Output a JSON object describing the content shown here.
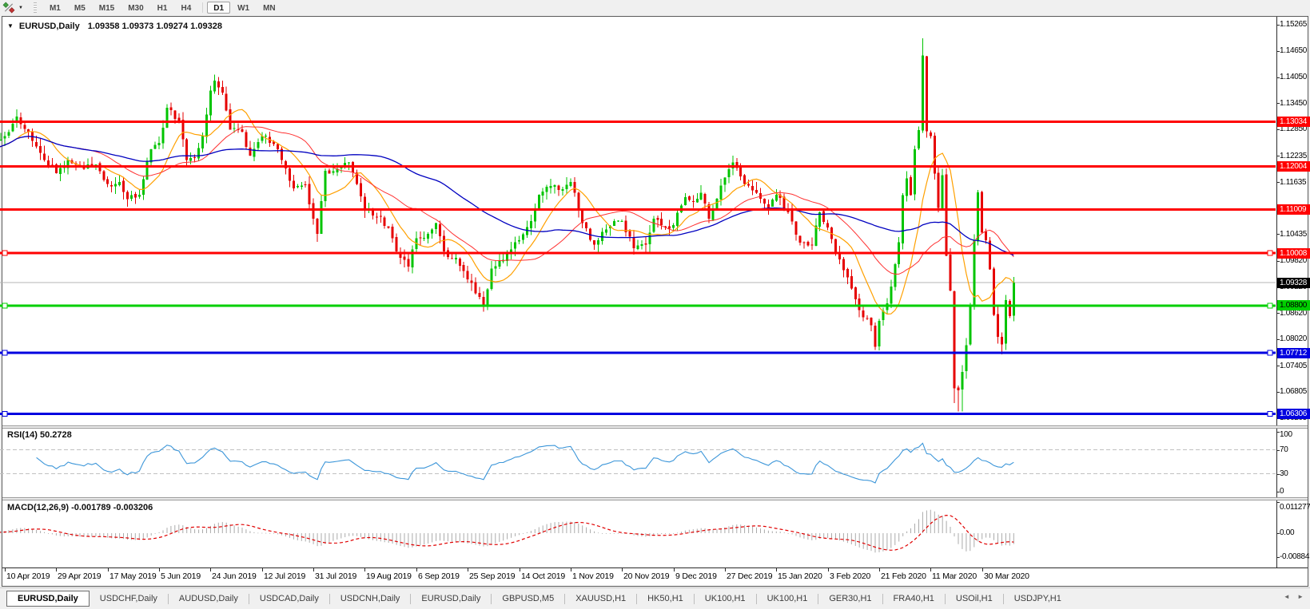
{
  "icons": {
    "collapse": "▼",
    "caret": "▼",
    "tab_prev": "◄",
    "tab_next": "►"
  },
  "toolbar": {
    "timeframes": [
      "M1",
      "M5",
      "M15",
      "M30",
      "H1",
      "H4",
      "D1",
      "W1",
      "MN"
    ],
    "active_timeframe": "D1"
  },
  "window": {
    "title_symbol": "EURUSD,Daily",
    "title_quotes": "1.09358 1.09373 1.09274 1.09328"
  },
  "price_axis": {
    "ticks": [
      "1.15265",
      "1.14650",
      "1.14050",
      "1.13450",
      "1.12850",
      "1.12235",
      "1.11635",
      "1.10435",
      "1.09820",
      "1.09220",
      "1.08620",
      "1.08020",
      "1.07405",
      "1.06805",
      "1.06205"
    ],
    "current": {
      "label": "1.09328",
      "price": 1.09328,
      "bg": "#000000",
      "text_color": "#ffffff"
    }
  },
  "hlines": [
    {
      "price": 1.13034,
      "label": "1.13034",
      "color": "#ff0000",
      "text_color": "#ffffff",
      "selected": false
    },
    {
      "price": 1.12004,
      "label": "1.12004",
      "color": "#ff0000",
      "text_color": "#ffffff",
      "selected": false
    },
    {
      "price": 1.11009,
      "label": "1.11009",
      "color": "#ff0000",
      "text_color": "#ffffff",
      "selected": false
    },
    {
      "price": 1.10008,
      "label": "1.10008",
      "color": "#ff0000",
      "text_color": "#ffffff",
      "selected": true
    },
    {
      "price": 1.088,
      "label": "1.08800",
      "color": "#00cf00",
      "text_color": "#000000",
      "selected": true
    },
    {
      "price": 1.07712,
      "label": "1.07712",
      "color": "#0000e0",
      "text_color": "#ffffff",
      "selected": true
    },
    {
      "price": 1.06306,
      "label": "1.06306",
      "color": "#0000e0",
      "text_color": "#ffffff",
      "selected": true
    }
  ],
  "rsi_panel": {
    "label": "RSI(14) 50.2728",
    "axis_labels": [
      [
        "100",
        100
      ],
      [
        "70",
        70
      ],
      [
        "30",
        30
      ],
      [
        "0",
        0
      ]
    ],
    "level_lines": [
      70,
      30
    ]
  },
  "macd_panel": {
    "label": "MACD(12,26,9) -0.001789 -0.003206",
    "axis_labels": [
      [
        "0.011277",
        0.011277
      ],
      [
        "0.00",
        0
      ],
      [
        "-0.00884",
        -0.00884
      ]
    ]
  },
  "date_axis": [
    "10 Apr 2019",
    "29 Apr 2019",
    "17 May 2019",
    "5 Jun 2019",
    "24 Jun 2019",
    "12 Jul 2019",
    "31 Jul 2019",
    "19 Aug 2019",
    "6 Sep 2019",
    "25 Sep 2019",
    "14 Oct 2019",
    "1 Nov 2019",
    "20 Nov 2019",
    "9 Dec 2019",
    "27 Dec 2019",
    "15 Jan 2020",
    "3 Feb 2020",
    "21 Feb 2020",
    "11 Mar 2020",
    "30 Mar 2020"
  ],
  "tabs": {
    "active_index": 0,
    "items": [
      "EURUSD,Daily",
      "USDCHF,Daily",
      "AUDUSD,Daily",
      "USDCAD,Daily",
      "USDCNH,Daily",
      "EURUSD,Daily",
      "GBPUSD,M5",
      "XAUUSD,H1",
      "HK50,H1",
      "UK100,H1",
      "UK100,H1",
      "GER30,H1",
      "FRA40,H1",
      "USOil,H1",
      "USDJPY,H1"
    ]
  },
  "colors": {
    "up": "#00c400",
    "down": "#e60000",
    "ma_fast": "#ffa000",
    "ma_mid": "#ff3030",
    "ma_slow": "#0000c0",
    "rsi": "#3c96d9",
    "rsi_level": "#c0c0c0",
    "macd_hist": "#ababab",
    "macd_signal": "#e00000",
    "current_line": "#b4b4b4"
  },
  "chart_data": {
    "type": "candlestick",
    "symbol": "EURUSD",
    "timeframe": "Daily",
    "ohlc_quote": {
      "open": "1.09358",
      "high": "1.09373",
      "low": "1.09274",
      "close": "1.09328"
    },
    "x_labels": [
      "10 Apr 2019",
      "29 Apr 2019",
      "17 May 2019",
      "5 Jun 2019",
      "24 Jun 2019",
      "12 Jul 2019",
      "31 Jul 2019",
      "19 Aug 2019",
      "6 Sep 2019",
      "25 Sep 2019",
      "14 Oct 2019",
      "1 Nov 2019",
      "20 Nov 2019",
      "9 Dec 2019",
      "27 Dec 2019",
      "15 Jan 2020",
      "3 Feb 2020",
      "21 Feb 2020",
      "11 Mar 2020",
      "30 Mar 2020"
    ],
    "bars_per_label": 13,
    "y_axis_ticks": [
      1.15265,
      1.1465,
      1.1405,
      1.1345,
      1.1285,
      1.12235,
      1.11635,
      1.10435,
      1.0982,
      1.0922,
      1.0862,
      1.0802,
      1.07405,
      1.06805,
      1.06205
    ],
    "y_range_approx": [
      1.0605,
      1.154
    ],
    "horizontal_levels": {
      "resistance_red": [
        1.13034,
        1.12004,
        1.11009,
        1.10008
      ],
      "support_green": [
        1.088
      ],
      "support_blue": [
        1.07712,
        1.06306
      ]
    },
    "moving_average_periods": [
      10,
      25,
      60
    ],
    "rsi": {
      "period": 14,
      "last_value": 50.2728,
      "levels": [
        70,
        30
      ],
      "scale": [
        0,
        100
      ]
    },
    "macd": {
      "fast": 12,
      "slow": 26,
      "signal": 9,
      "last_macd": -0.001789,
      "last_signal": -0.003206,
      "axis_max": 0.011277,
      "axis_min": -0.00884
    },
    "price_waypoints": [
      [
        0,
        1.1225
      ],
      [
        3,
        1.1255
      ],
      [
        6,
        1.127
      ],
      [
        9,
        1.1315
      ],
      [
        12,
        1.128
      ],
      [
        16,
        1.1215
      ],
      [
        19,
        1.1185
      ],
      [
        22,
        1.1215
      ],
      [
        26,
        1.1195
      ],
      [
        29,
        1.1205
      ],
      [
        32,
        1.116
      ],
      [
        35,
        1.1165
      ],
      [
        37,
        1.1125
      ],
      [
        40,
        1.1135
      ],
      [
        43,
        1.124
      ],
      [
        45,
        1.1255
      ],
      [
        47,
        1.1335
      ],
      [
        50,
        1.1305
      ],
      [
        52,
        1.1215
      ],
      [
        54,
        1.122
      ],
      [
        56,
        1.127
      ],
      [
        58,
        1.1375
      ],
      [
        59,
        1.1398
      ],
      [
        61,
        1.137
      ],
      [
        63,
        1.1285
      ],
      [
        66,
        1.128
      ],
      [
        68,
        1.1225
      ],
      [
        71,
        1.127
      ],
      [
        74,
        1.1252
      ],
      [
        76,
        1.1215
      ],
      [
        79,
        1.115
      ],
      [
        82,
        1.1158
      ],
      [
        84,
        1.108
      ],
      [
        85,
        1.1045
      ],
      [
        87,
        1.119
      ],
      [
        90,
        1.1195
      ],
      [
        93,
        1.121
      ],
      [
        97,
        1.11
      ],
      [
        101,
        1.1085
      ],
      [
        104,
        1.1035
      ],
      [
        106,
        1.099
      ],
      [
        108,
        1.097
      ],
      [
        110,
        1.1035
      ],
      [
        113,
        1.1045
      ],
      [
        115,
        1.107
      ],
      [
        117,
        1.1005
      ],
      [
        120,
        1.099
      ],
      [
        123,
        1.094
      ],
      [
        126,
        1.09
      ],
      [
        127,
        1.0882
      ],
      [
        129,
        1.0965
      ],
      [
        132,
        1.0985
      ],
      [
        136,
        1.103
      ],
      [
        139,
        1.1075
      ],
      [
        141,
        1.1135
      ],
      [
        144,
        1.1155
      ],
      [
        147,
        1.1148
      ],
      [
        149,
        1.1165
      ],
      [
        152,
        1.107
      ],
      [
        155,
        1.102
      ],
      [
        158,
        1.1055
      ],
      [
        160,
        1.1075
      ],
      [
        162,
        1.1075
      ],
      [
        165,
        1.1012
      ],
      [
        168,
        1.102
      ],
      [
        170,
        1.108
      ],
      [
        173,
        1.106
      ],
      [
        175,
        1.1065
      ],
      [
        178,
        1.113
      ],
      [
        180,
        1.112
      ],
      [
        182,
        1.114
      ],
      [
        184,
        1.108
      ],
      [
        188,
        1.1175
      ],
      [
        190,
        1.121
      ],
      [
        193,
        1.116
      ],
      [
        196,
        1.114
      ],
      [
        199,
        1.1105
      ],
      [
        201,
        1.1135
      ],
      [
        204,
        1.1095
      ],
      [
        207,
        1.1025
      ],
      [
        210,
        1.102
      ],
      [
        212,
        1.1095
      ],
      [
        214,
        1.106
      ],
      [
        216,
        1.1
      ],
      [
        219,
        1.0945
      ],
      [
        222,
        1.087
      ],
      [
        225,
        1.0835
      ],
      [
        226,
        1.0785
      ],
      [
        227,
        1.0845
      ],
      [
        229,
        1.0885
      ],
      [
        231,
        1.0975
      ],
      [
        232,
        1.1026
      ],
      [
        233,
        1.1134
      ],
      [
        234,
        1.1173
      ],
      [
        235,
        1.1134
      ],
      [
        236,
        1.124
      ],
      [
        237,
        1.1284
      ],
      [
        238,
        1.1456
      ],
      [
        239,
        1.1281
      ],
      [
        240,
        1.127
      ],
      [
        241,
        1.1184
      ],
      [
        242,
        1.1105
      ],
      [
        243,
        1.118
      ],
      [
        244,
        1.0995
      ],
      [
        245,
        1.0915
      ],
      [
        246,
        1.069
      ],
      [
        247,
        1.0685
      ],
      [
        248,
        1.0727
      ],
      [
        249,
        1.0789
      ],
      [
        250,
        1.0883
      ],
      [
        251,
        1.103
      ],
      [
        252,
        1.1141
      ],
      [
        253,
        1.1048
      ],
      [
        254,
        1.1031
      ],
      [
        255,
        1.0963
      ],
      [
        256,
        1.0859
      ],
      [
        257,
        1.0808
      ],
      [
        258,
        1.0791
      ],
      [
        259,
        1.0893
      ],
      [
        260,
        1.0856
      ],
      [
        261,
        1.09328
      ]
    ],
    "wick_overrides": [
      [
        59,
        "h",
        1.1412
      ],
      [
        85,
        "l",
        1.1027
      ],
      [
        127,
        "l",
        1.0879
      ],
      [
        226,
        "l",
        1.0778
      ],
      [
        238,
        "h",
        1.1495
      ],
      [
        246,
        "l",
        1.0656
      ],
      [
        247,
        "l",
        1.0636
      ],
      [
        248,
        "l",
        1.0636
      ],
      [
        258,
        "l",
        1.0768
      ]
    ]
  }
}
